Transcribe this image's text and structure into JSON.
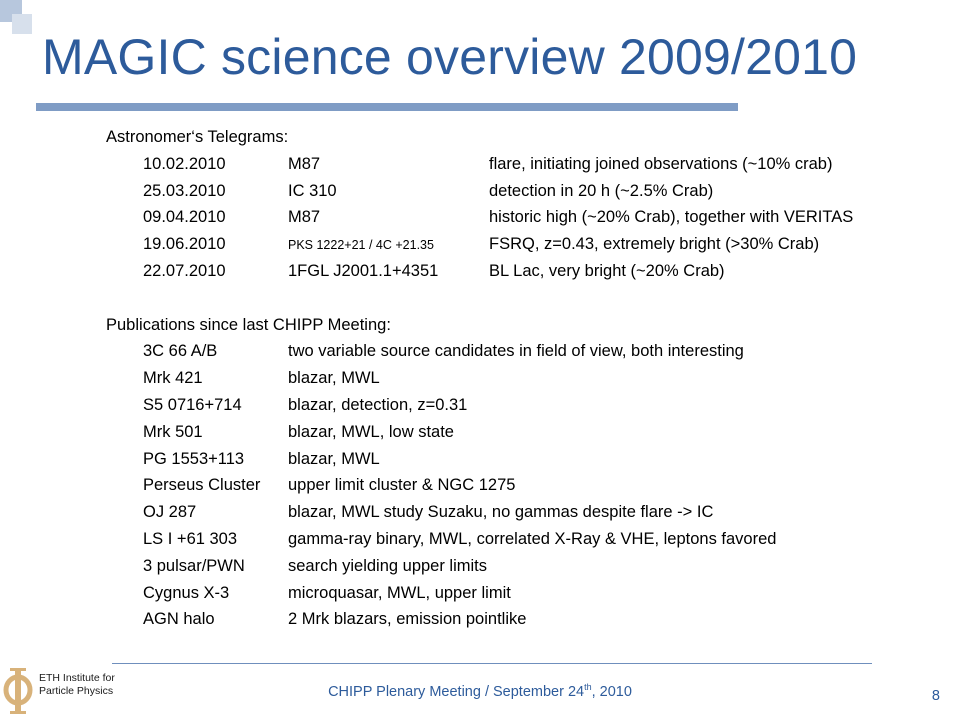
{
  "slide": {
    "title": "MAGIC science overview 2009/2010",
    "accent_color": "#2d5b9b",
    "rule_color": "#7f9cc5"
  },
  "telegrams": {
    "heading": "Astronomer‘s Telegrams:",
    "rows": [
      {
        "date": "10.02.2010",
        "source": "M87",
        "source_small": false,
        "description": "flare, initiating joined observations (~10% crab)"
      },
      {
        "date": "25.03.2010",
        "source": "IC 310",
        "source_small": false,
        "description": "detection in 20 h (~2.5% Crab)"
      },
      {
        "date": "09.04.2010",
        "source": "M87",
        "source_small": false,
        "description": "historic high (~20% Crab), together with VERITAS"
      },
      {
        "date": "19.06.2010",
        "source": "PKS 1222+21 / 4C +21.35",
        "source_small": true,
        "description": "FSRQ, z=0.43, extremely bright (>30% Crab)"
      },
      {
        "date": "22.07.2010",
        "source": "1FGL J2001.1+4351",
        "source_small": false,
        "description": "BL Lac, very bright (~20% Crab)"
      }
    ]
  },
  "publications": {
    "heading": "Publications since last CHIPP Meeting:",
    "rows": [
      {
        "source": "3C 66 A/B",
        "description": "two variable source candidates in field of view, both interesting"
      },
      {
        "source": "Mrk 421",
        "description": "blazar, MWL"
      },
      {
        "source": "S5 0716+714",
        "description": "blazar, detection, z=0.31"
      },
      {
        "source": "Mrk 501",
        "description": "blazar, MWL, low state"
      },
      {
        "source": "PG 1553+113",
        "description": "blazar, MWL"
      },
      {
        "source": "Perseus Cluster",
        "description": "upper limit cluster & NGC 1275"
      },
      {
        "source": "OJ 287",
        "description": "blazar, MWL study Suzaku, no gammas despite flare -> IC"
      },
      {
        "source": "LS I +61 303",
        "description": "gamma-ray binary, MWL, correlated X-Ray & VHE, leptons favored"
      },
      {
        "source": "3 pulsar/PWN",
        "description": "search yielding upper limits"
      },
      {
        "source": "Cygnus X-3",
        "description": "microquasar, MWL, upper limit"
      },
      {
        "source": "AGN halo",
        "description": "2 Mrk blazars, emission pointlike"
      }
    ]
  },
  "footer": {
    "text_before_sup": "CHIPP Plenary Meeting / September 24",
    "sup": "th",
    "text_after_sup": ", 2010",
    "page_number": "8",
    "logo_line1": "ETH Institute for",
    "logo_line2": "Particle Physics",
    "logo_icon": "phi-logo-icon"
  }
}
